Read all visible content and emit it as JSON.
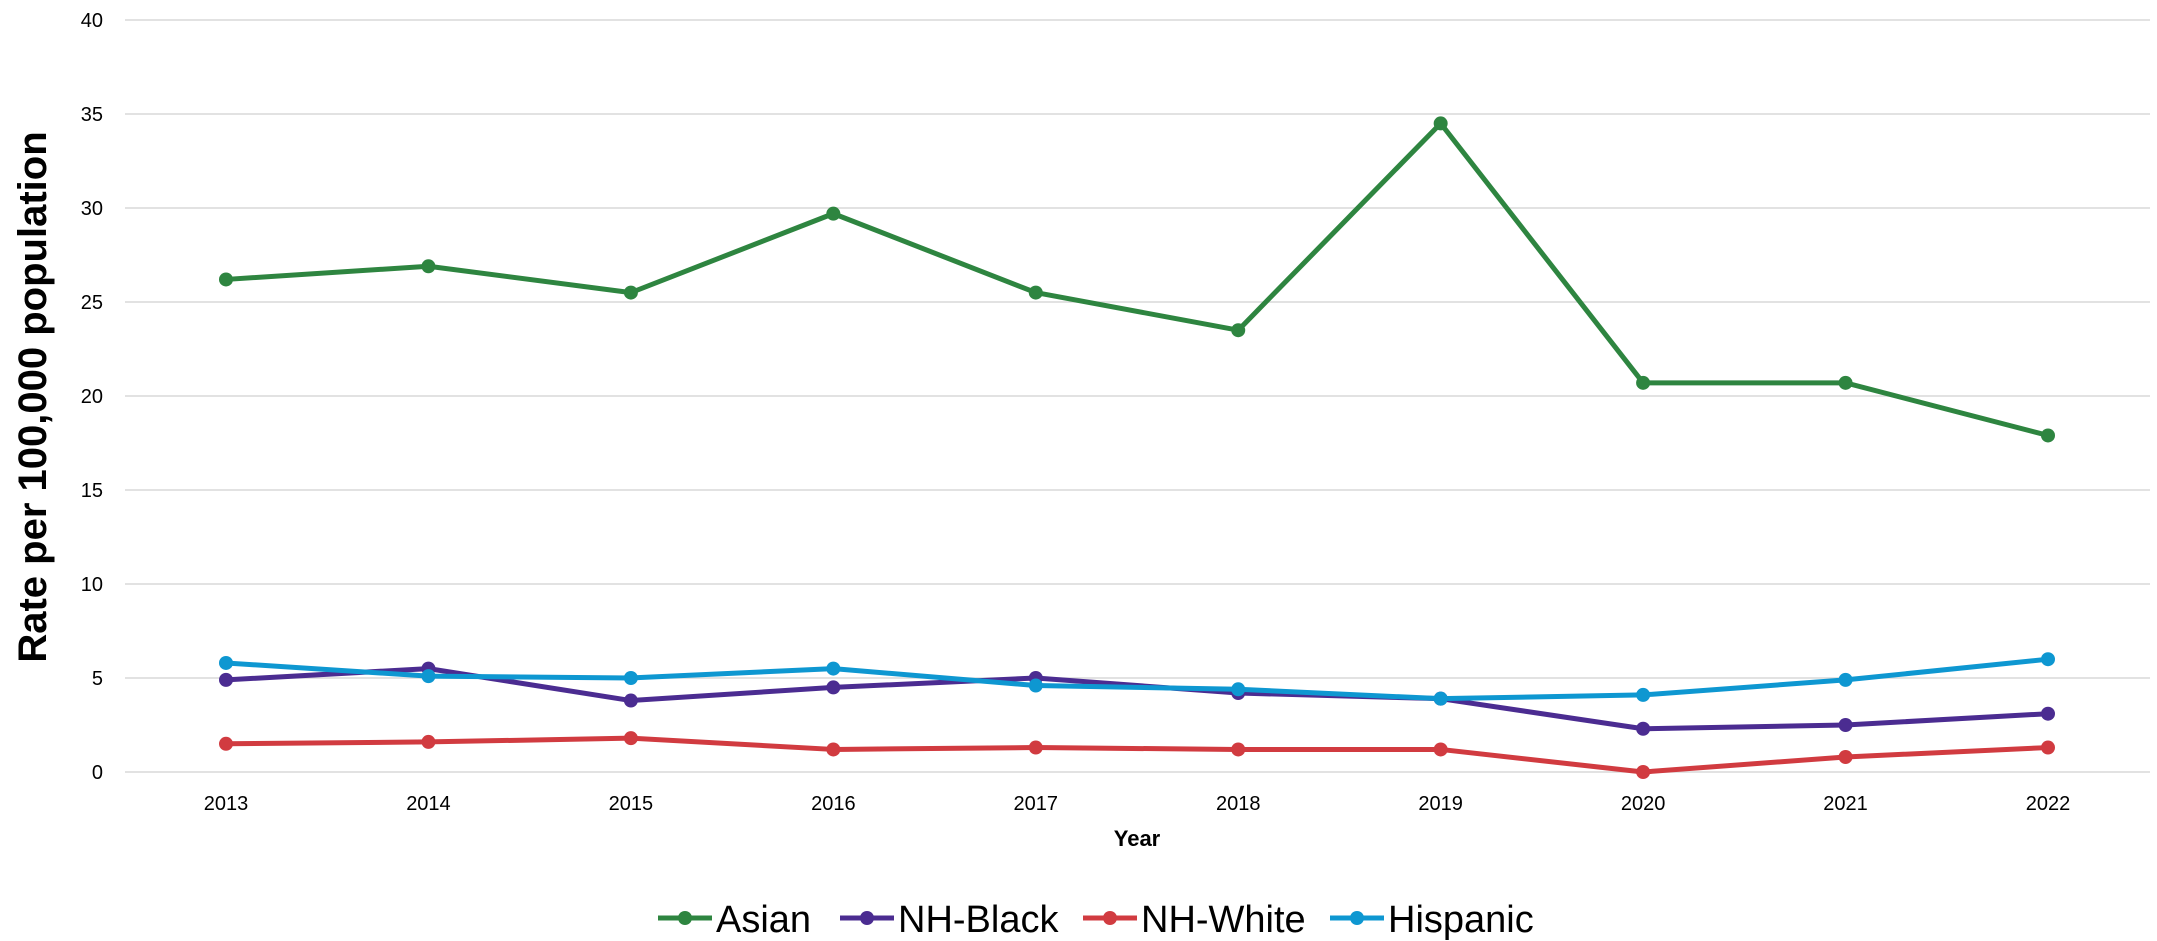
{
  "chart_data": {
    "type": "line",
    "title": "",
    "xlabel": "Year",
    "ylabel": "Rate per 100,000 population",
    "x": [
      "2013",
      "2014",
      "2015",
      "2016",
      "2017",
      "2018",
      "2019",
      "2020",
      "2021",
      "2022"
    ],
    "ylim": [
      0,
      40
    ],
    "yticks": [
      "0",
      "5",
      "10",
      "15",
      "20",
      "25",
      "30",
      "35",
      "40"
    ],
    "grid": true,
    "legend_position": "bottom",
    "series": [
      {
        "name": "Asian",
        "color": "#2e8540",
        "values": [
          26.2,
          26.9,
          25.5,
          29.7,
          25.5,
          23.5,
          34.5,
          20.7,
          20.7,
          17.9
        ]
      },
      {
        "name": "NH-Black",
        "color": "#4b2c91",
        "values": [
          4.9,
          5.5,
          3.8,
          4.5,
          5.0,
          4.2,
          3.9,
          2.3,
          2.5,
          3.1
        ]
      },
      {
        "name": "NH-White",
        "color": "#d13b40",
        "values": [
          1.5,
          1.6,
          1.8,
          1.2,
          1.3,
          1.2,
          1.2,
          0.0,
          0.8,
          1.3
        ]
      },
      {
        "name": "Hispanic",
        "color": "#0e97d1",
        "values": [
          5.8,
          5.1,
          5.0,
          5.5,
          4.6,
          4.4,
          3.9,
          4.1,
          4.9,
          6.0
        ]
      }
    ]
  }
}
